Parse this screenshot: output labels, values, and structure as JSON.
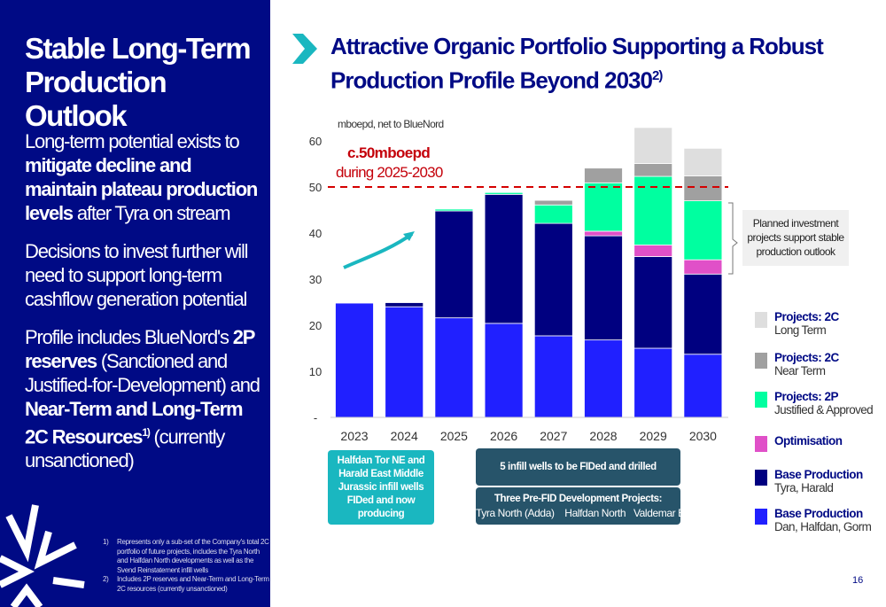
{
  "left": {
    "title_lines": [
      "Stable Long-Term",
      "Production Outlook"
    ],
    "para1": {
      "pre": "Long-term potential exists to ",
      "bold": "mitigate decline and maintain plateau production levels",
      "post": " after Tyra on stream"
    },
    "para2": "Decisions to invest further will need to support long-term cashflow generation potential",
    "para3": {
      "pre": "Profile includes BlueNord's ",
      "bold1": "2P reserves",
      "mid": " (Sanctioned and Justified-for-Development) and ",
      "bold2": "Near-Term and Long-Term 2C Resources",
      "sup": "1)",
      "post": " (currently unsanctioned)"
    },
    "footnotes": [
      {
        "num": "1)",
        "text": "Represents only a sub-set of the Company's total 2C portfolio of future projects, includes the Tyra North and Halfdan North developments as well as the Svend Reinstatement infill wells"
      },
      {
        "num": "2)",
        "text": "Includes 2P reserves and Near-Term and Long-Term 2C resources (currently unsanctioned)"
      }
    ]
  },
  "right": {
    "title": "Attractive Organic Portfolio Supporting a Robust Production Profile Beyond 2030",
    "title_sup": "2)",
    "plateau_value": "c.50mboepd",
    "plateau_period": "during 2025-2030",
    "callout": "Planned investment projects support stable production outlook",
    "box_teal": "Halfdan Tor NE and Harald East Middle Jurassic infill wells FIDed and now producing",
    "box_infill": "5 infill wells to be FIDed and drilled",
    "box_prefid_title": "Three Pre-FID Development Projects:",
    "box_prefid_items": "Tyra North (Adda)    Halfdan North   Valdemar Bo South",
    "page_number": "16"
  },
  "chart_data": {
    "type": "bar",
    "stacked": true,
    "ylabel": "mboepd, net to BlueNord",
    "categories": [
      "2023",
      "2024",
      "2025",
      "2026",
      "2027",
      "2028",
      "2029",
      "2030"
    ],
    "yticks": [
      "-",
      "10",
      "20",
      "30",
      "40",
      "50",
      "60"
    ],
    "ylim": [
      0,
      60
    ],
    "reference_line": {
      "value": 50,
      "color": "#d40000",
      "style": "dashed"
    },
    "series": [
      {
        "name": "Base Production",
        "sub": "Dan, Halfdan, Gorm",
        "color": "#2020ff",
        "values": [
          24.8,
          24.0,
          21.6,
          20.4,
          17.7,
          16.8,
          15.0,
          13.7
        ]
      },
      {
        "name": "Base Production",
        "sub": "Tyra, Harald",
        "color": "#000080",
        "values": [
          0,
          0.9,
          23.2,
          28.0,
          24.4,
          22.6,
          19.9,
          17.4
        ]
      },
      {
        "name": "Optimisation",
        "sub": "",
        "color": "#e050c8",
        "values": [
          0,
          0,
          0,
          0,
          0,
          1.0,
          2.5,
          3.1
        ]
      },
      {
        "name": "Projects: 2P",
        "sub": "Justified & Approved",
        "color": "#00ffa0",
        "values": [
          0,
          0,
          0.4,
          0.4,
          4.0,
          10.5,
          14.9,
          12.8
        ]
      },
      {
        "name": "Projects: 2C",
        "sub": "Near Term",
        "color": "#a0a0a0",
        "values": [
          0,
          0,
          0,
          0,
          1.0,
          3.2,
          2.8,
          5.4
        ]
      },
      {
        "name": "Projects: 2C",
        "sub": "Long Term",
        "color": "#dedede",
        "values": [
          0,
          0,
          0,
          0,
          0,
          0,
          7.8,
          6.0
        ]
      }
    ],
    "legend_order": [
      5,
      4,
      3,
      2,
      1,
      0
    ],
    "legend_placement": "right"
  }
}
